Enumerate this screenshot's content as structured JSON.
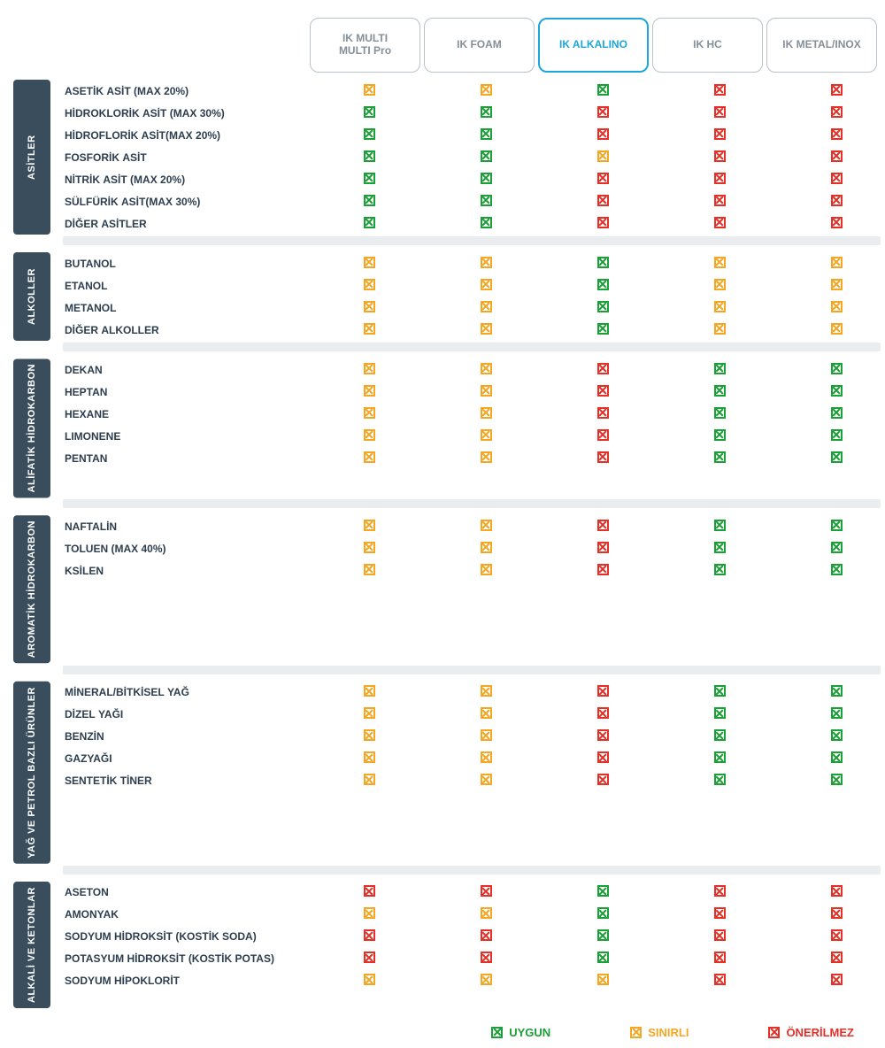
{
  "colors": {
    "uygun": "#1aa037",
    "sinirli": "#f5a623",
    "onerilmez": "#e53028",
    "group_bg": "#3a4d5c",
    "divider": "#e9edef",
    "header_border": "#b9c2c9",
    "highlight": "#1ca6d9"
  },
  "columns": [
    {
      "label": "IK MULTI\nMULTI Pro",
      "highlight": false
    },
    {
      "label": "IK FOAM",
      "highlight": false
    },
    {
      "label": "IK ALKALINO",
      "highlight": true
    },
    {
      "label": "IK HC",
      "highlight": false
    },
    {
      "label": "IK METAL/INOX",
      "highlight": false
    }
  ],
  "legend": {
    "uygun": "UYGUN",
    "sinirli": "SINIRLI",
    "onerilmez": "ÖNERİLMEZ"
  },
  "groups": [
    {
      "label": "ASİTLER",
      "rows": [
        {
          "label": "ASETİK ASİT (MAX 20%)",
          "v": [
            "y",
            "y",
            "g",
            "r",
            "r"
          ]
        },
        {
          "label": "HİDROKLORİK ASİT (MAX 30%)",
          "v": [
            "g",
            "g",
            "r",
            "r",
            "r"
          ]
        },
        {
          "label": "HİDROFLORİK ASİT(MAX 20%)",
          "v": [
            "g",
            "g",
            "r",
            "r",
            "r"
          ]
        },
        {
          "label": "FOSFORİK ASİT",
          "v": [
            "g",
            "g",
            "y",
            "r",
            "r"
          ]
        },
        {
          "label": "NİTRİK ASİT (MAX 20%)",
          "v": [
            "g",
            "g",
            "r",
            "r",
            "r"
          ]
        },
        {
          "label": "SÜLFÜRİK ASİT(MAX 30%)",
          "v": [
            "g",
            "g",
            "r",
            "r",
            "r"
          ]
        },
        {
          "label": "DİĞER ASİTLER",
          "v": [
            "g",
            "g",
            "r",
            "r",
            "r"
          ]
        }
      ]
    },
    {
      "label": "ALKOLLER",
      "rows": [
        {
          "label": "BUTANOL",
          "v": [
            "y",
            "y",
            "g",
            "y",
            "y"
          ]
        },
        {
          "label": "ETANOL",
          "v": [
            "y",
            "y",
            "g",
            "y",
            "y"
          ]
        },
        {
          "label": "METANOL",
          "v": [
            "y",
            "y",
            "g",
            "y",
            "y"
          ]
        },
        {
          "label": "DİĞER ALKOLLER",
          "v": [
            "y",
            "y",
            "g",
            "y",
            "y"
          ]
        }
      ]
    },
    {
      "label": "ALİFATİK HİDROKARBON",
      "rows": [
        {
          "label": "DEKAN",
          "v": [
            "y",
            "y",
            "r",
            "g",
            "g"
          ]
        },
        {
          "label": "HEPTAN",
          "v": [
            "y",
            "y",
            "r",
            "g",
            "g"
          ]
        },
        {
          "label": "HEXANE",
          "v": [
            "y",
            "y",
            "r",
            "g",
            "g"
          ]
        },
        {
          "label": "LIMONENE",
          "v": [
            "y",
            "y",
            "r",
            "g",
            "g"
          ]
        },
        {
          "label": "PENTAN",
          "v": [
            "y",
            "y",
            "r",
            "g",
            "g"
          ]
        }
      ]
    },
    {
      "label": "AROMATİK HİDROKARBON",
      "rows": [
        {
          "label": "NAFTALİN",
          "v": [
            "y",
            "y",
            "r",
            "g",
            "g"
          ]
        },
        {
          "label": "TOLUEN (MAX 40%)",
          "v": [
            "y",
            "y",
            "r",
            "g",
            "g"
          ]
        },
        {
          "label": "KSİLEN",
          "v": [
            "y",
            "y",
            "r",
            "g",
            "g"
          ]
        }
      ]
    },
    {
      "label": "YAĞ VE PETROL BAZLI ÜRÜNLER",
      "rows": [
        {
          "label": "MİNERAL/BİTKİSEL YAĞ",
          "v": [
            "y",
            "y",
            "r",
            "g",
            "g"
          ]
        },
        {
          "label": "DİZEL YAĞI",
          "v": [
            "y",
            "y",
            "r",
            "g",
            "g"
          ]
        },
        {
          "label": "BENZİN",
          "v": [
            "y",
            "y",
            "r",
            "g",
            "g"
          ]
        },
        {
          "label": "GAZYAĞI",
          "v": [
            "y",
            "y",
            "r",
            "g",
            "g"
          ]
        },
        {
          "label": "SENTETİK TİNER",
          "v": [
            "y",
            "y",
            "r",
            "g",
            "g"
          ]
        }
      ]
    },
    {
      "label": "ALKALİ VE KETONLAR",
      "rows": [
        {
          "label": "ASETON",
          "v": [
            "r",
            "r",
            "g",
            "r",
            "r"
          ]
        },
        {
          "label": "AMONYAK",
          "v": [
            "y",
            "y",
            "g",
            "r",
            "r"
          ]
        },
        {
          "label": "SODYUM HİDROKSİT (KOSTİK SODA)",
          "v": [
            "r",
            "r",
            "g",
            "r",
            "r"
          ]
        },
        {
          "label": "POTASYUM HİDROKSİT (KOSTİK POTAS)",
          "v": [
            "r",
            "r",
            "g",
            "r",
            "r"
          ]
        },
        {
          "label": "SODYUM HİPOKLORİT",
          "v": [
            "y",
            "y",
            "y",
            "r",
            "r"
          ]
        }
      ]
    }
  ]
}
